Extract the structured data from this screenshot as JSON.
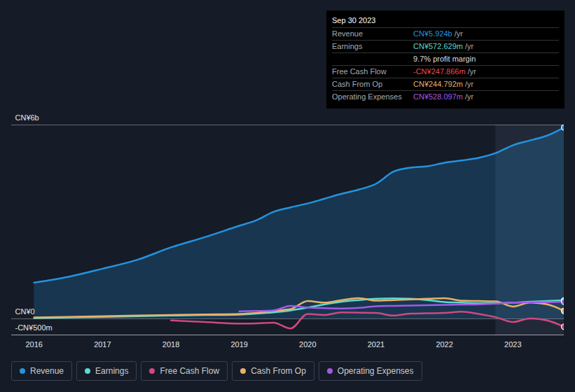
{
  "chart_data": {
    "type": "line",
    "x": [
      2016,
      2016.5,
      2017,
      2017.5,
      2018,
      2018.5,
      2019,
      2019.25,
      2019.5,
      2019.75,
      2020,
      2020.25,
      2020.5,
      2020.75,
      2021,
      2021.25,
      2021.5,
      2021.75,
      2022,
      2022.25,
      2022.5,
      2022.75,
      2023,
      2023.25,
      2023.5,
      2023.75
    ],
    "xlim": [
      2015.67,
      2023.75
    ],
    "xticks": [
      2016,
      2017,
      2018,
      2019,
      2020,
      2021,
      2022,
      2023
    ],
    "ylim": [
      -500,
      6000
    ],
    "yticks": [
      {
        "value": -500,
        "label": "-CN¥500m"
      },
      {
        "value": 0,
        "label": "CN¥0"
      },
      {
        "value": 6000,
        "label": "CN¥6b"
      }
    ],
    "grid": true,
    "legend": "bottom-left",
    "shaded_range": [
      2022.75,
      2023.75
    ],
    "series": [
      {
        "name": "Revenue",
        "color": "#2394df",
        "type": "area",
        "values": [
          1120,
          1300,
          1550,
          1820,
          2210,
          2530,
          2880,
          3050,
          3310,
          3450,
          3570,
          3720,
          3870,
          4000,
          4180,
          4550,
          4680,
          4720,
          4830,
          4900,
          4980,
          5130,
          5370,
          5520,
          5670,
          5924
        ]
      },
      {
        "name": "Earnings",
        "color": "#5fd9cc",
        "values": [
          20,
          40,
          60,
          80,
          100,
          115,
          130,
          160,
          200,
          260,
          350,
          450,
          530,
          580,
          620,
          630,
          620,
          580,
          520,
          500,
          480,
          480,
          500,
          530,
          550,
          572.629
        ]
      },
      {
        "name": "Free Cash Flow",
        "color": "#d1487f",
        "values": [
          null,
          null,
          null,
          null,
          -50,
          -100,
          -150,
          -140,
          -120,
          -300,
          150,
          120,
          200,
          190,
          180,
          100,
          160,
          170,
          180,
          220,
          150,
          50,
          -100,
          10,
          -50,
          -247.866
        ]
      },
      {
        "name": "Cash From Op",
        "color": "#e8b06a",
        "values": [
          40,
          60,
          80,
          100,
          120,
          135,
          150,
          180,
          250,
          300,
          550,
          500,
          580,
          640,
          560,
          580,
          600,
          620,
          640,
          560,
          550,
          540,
          380,
          500,
          450,
          244.792
        ]
      },
      {
        "name": "Operating Expenses",
        "color": "#a25ae6",
        "values": [
          null,
          null,
          null,
          null,
          null,
          null,
          230,
          240,
          260,
          400,
          350,
          330,
          320,
          340,
          390,
          400,
          410,
          420,
          430,
          440,
          450,
          470,
          500,
          510,
          515,
          528.097
        ]
      }
    ],
    "annotation": {
      "title": "Sep 30 2023",
      "rows": [
        {
          "label": "Revenue",
          "value": "CN¥5.924b",
          "unit": "/yr",
          "color": "#2394df"
        },
        {
          "label": "Earnings",
          "value": "CN¥572.629m",
          "unit": "/yr",
          "color": "#5fd9cc"
        },
        {
          "label": "",
          "value": "9.7% profit margin",
          "unit": "",
          "color": "#dddddd"
        },
        {
          "label": "Free Cash Flow",
          "value": "-CN¥247.866m",
          "unit": "/yr",
          "color": "#f0474a"
        },
        {
          "label": "Cash From Op",
          "value": "CN¥244.792m",
          "unit": "/yr",
          "color": "#e8b06a"
        },
        {
          "label": "Operating Expenses",
          "value": "CN¥528.097m",
          "unit": "/yr",
          "color": "#a25ae6"
        }
      ]
    }
  }
}
